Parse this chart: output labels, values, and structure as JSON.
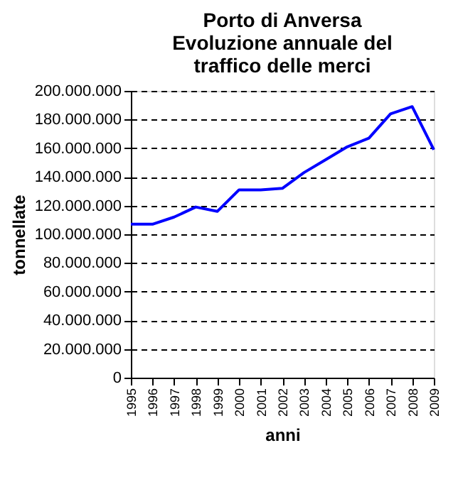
{
  "chart_data": {
    "type": "line",
    "title": [
      "Porto di Anversa",
      "Evoluzione annuale del",
      "traffico delle merci"
    ],
    "xlabel": "anni",
    "ylabel": "tonnellate",
    "categories": [
      "1995",
      "1996",
      "1997",
      "1998",
      "1999",
      "2000",
      "2001",
      "2002",
      "2003",
      "2004",
      "2005",
      "2006",
      "2007",
      "2008",
      "2009"
    ],
    "series": [
      {
        "color": "#0000ff",
        "values": [
          107000000,
          107000000,
          112000000,
          119000000,
          116000000,
          131000000,
          131000000,
          132000000,
          143000000,
          152000000,
          161000000,
          167000000,
          184000000,
          189000000,
          159000000
        ]
      }
    ],
    "ylim": [
      0,
      200000000
    ],
    "yticks": [
      {
        "value": 0,
        "label": "0"
      },
      {
        "value": 20000000,
        "label": "20.000.000"
      },
      {
        "value": 40000000,
        "label": "40.000.000"
      },
      {
        "value": 60000000,
        "label": "60.000.000"
      },
      {
        "value": 80000000,
        "label": "80.000.000"
      },
      {
        "value": 100000000,
        "label": "100.000.000"
      },
      {
        "value": 120000000,
        "label": "120.000.000"
      },
      {
        "value": 140000000,
        "label": "140.000.000"
      },
      {
        "value": 160000000,
        "label": "160.000.000"
      },
      {
        "value": 180000000,
        "label": "180.000.000"
      },
      {
        "value": 200000000,
        "label": "200.000.000"
      }
    ],
    "grid": "y",
    "line_style": "solid",
    "marker": "none",
    "legend": false
  }
}
